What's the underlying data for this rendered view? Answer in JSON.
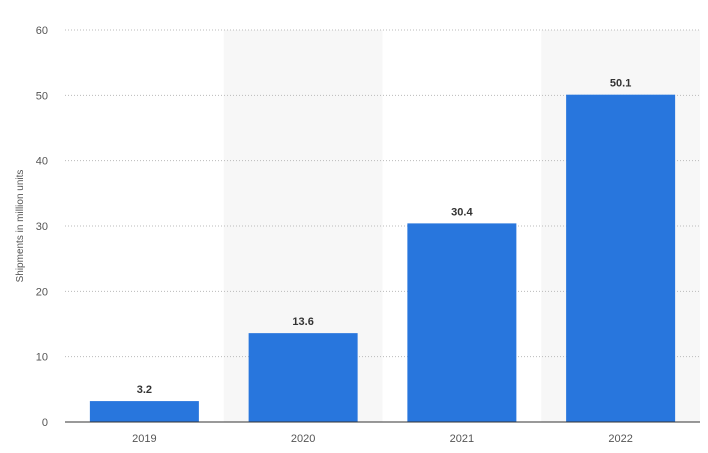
{
  "chart_data": {
    "type": "bar",
    "categories": [
      "2019",
      "2020",
      "2021",
      "2022"
    ],
    "values": [
      3.2,
      13.6,
      30.4,
      50.1
    ],
    "value_labels": [
      "3.2",
      "13.6",
      "30.4",
      "50.1"
    ],
    "title": "",
    "xlabel": "",
    "ylabel": "Shipments in million units",
    "ylim": [
      0,
      60
    ],
    "yticks": [
      0,
      10,
      20,
      30,
      40,
      50,
      60
    ],
    "ytick_labels": [
      "0",
      "10",
      "20",
      "30",
      "40",
      "50",
      "60"
    ],
    "grid": true,
    "grid_style": "dotted",
    "alternating_column_shading": true,
    "bar_color": "#2876dd",
    "shade_color": "#f7f7f7",
    "grid_color": "#bbbbbb"
  }
}
